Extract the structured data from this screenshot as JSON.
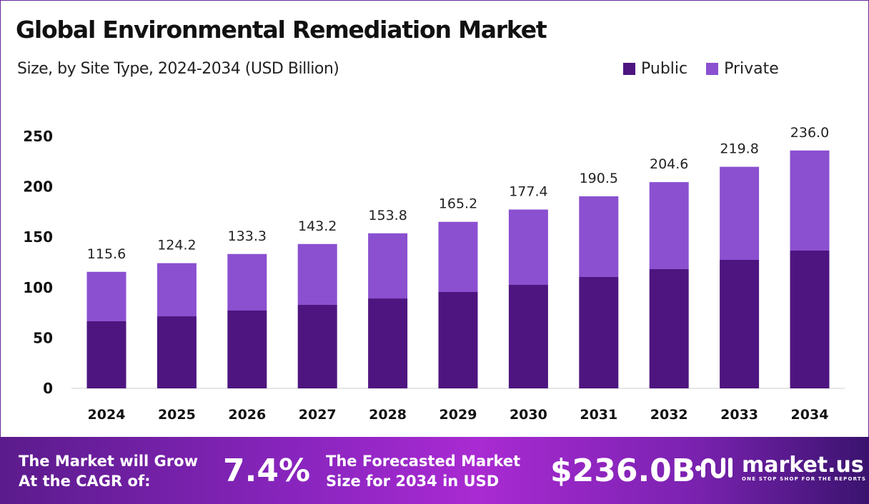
{
  "title": "Global Environmental Remediation Market",
  "subtitle": "Size, by Site Type, 2024-2034 (USD Billion)",
  "colors": {
    "public": "#4e1580",
    "private": "#8a50d0"
  },
  "chart_data": {
    "type": "bar",
    "stacked": true,
    "categories": [
      "2024",
      "2025",
      "2026",
      "2027",
      "2028",
      "2029",
      "2030",
      "2031",
      "2032",
      "2033",
      "2034"
    ],
    "series": [
      {
        "name": "Public",
        "values": [
          66.6,
          71.5,
          77.2,
          82.9,
          89.2,
          95.6,
          102.7,
          110.5,
          118.3,
          127.5,
          136.7
        ]
      },
      {
        "name": "Private",
        "values": [
          49.0,
          52.7,
          56.1,
          60.3,
          64.6,
          69.6,
          74.7,
          80.0,
          86.3,
          92.3,
          99.3
        ]
      }
    ],
    "totals": [
      "115.6",
      "124.2",
      "133.3",
      "143.2",
      "153.8",
      "165.2",
      "177.4",
      "190.5",
      "204.6",
      "219.8",
      "236.0"
    ],
    "yticks": [
      "0",
      "50",
      "100",
      "150",
      "200",
      "250"
    ],
    "ylim": [
      0,
      250
    ],
    "legend_position": "top-right",
    "grid": false
  },
  "banner": {
    "cagr_label_1": "The Market will Grow",
    "cagr_label_2": "At the CAGR of:",
    "cagr_value": "7.4%",
    "forecast_label_1": "The Forecasted Market",
    "forecast_label_2": "Size for 2034 in USD",
    "forecast_value": "$236.0B",
    "logo_name": "market.us",
    "logo_tagline": "ONE STOP SHOP FOR THE REPORTS"
  }
}
